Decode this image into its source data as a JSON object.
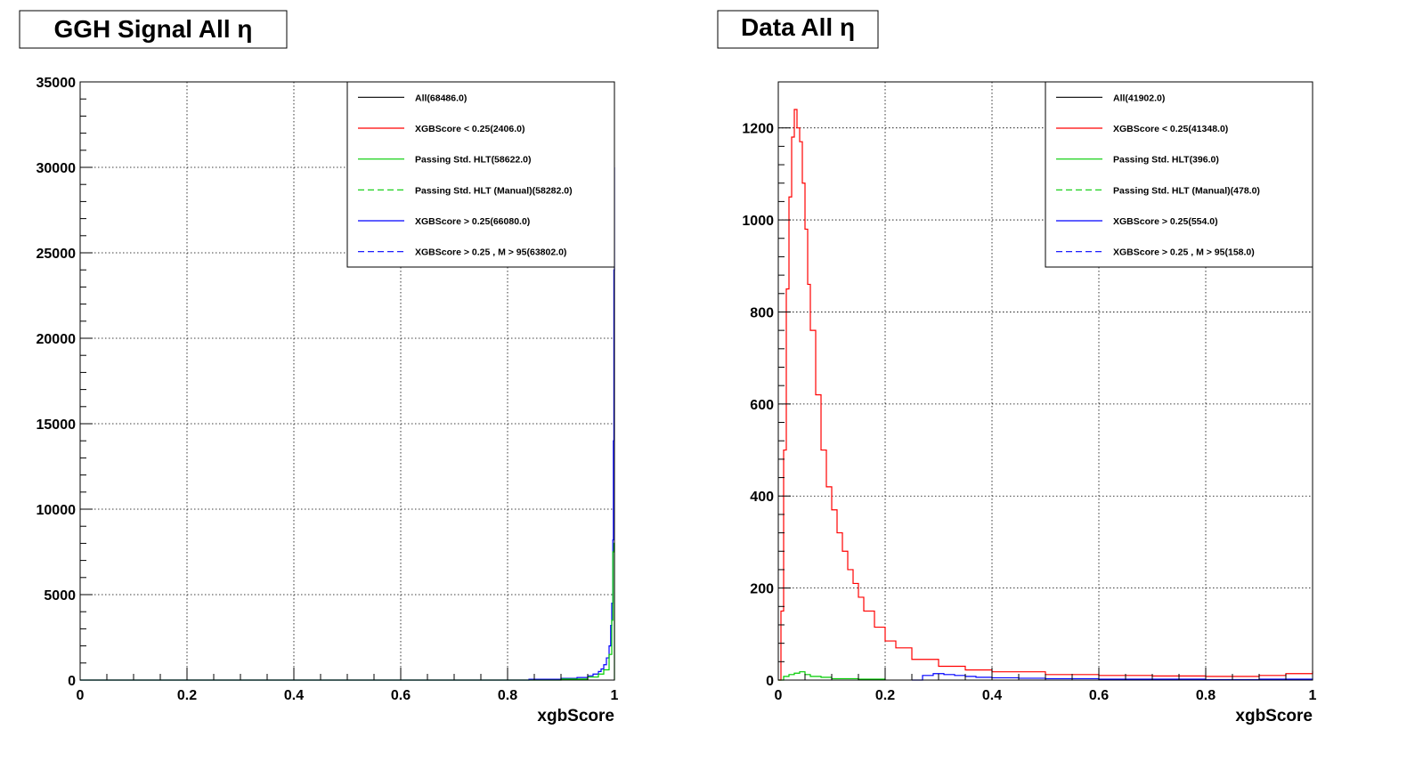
{
  "chart_data": [
    {
      "type": "histogram",
      "title": "GGH Signal All η",
      "xlabel": "xgbScore",
      "ylabel": "",
      "xlim": [
        0,
        1
      ],
      "ylim": [
        0,
        35000
      ],
      "xticks": [
        "0",
        "0.2",
        "0.4",
        "0.6",
        "0.8",
        "1"
      ],
      "yticks": [
        "0",
        "5000",
        "10000",
        "15000",
        "20000",
        "25000",
        "30000",
        "35000"
      ],
      "grid": true,
      "legend_position": "top-right",
      "legend": [
        {
          "label": "All(68486.0)",
          "color": "#000000",
          "style": "solid"
        },
        {
          "label": "XGBScore < 0.25(2406.0)",
          "color": "#ff0000",
          "style": "solid"
        },
        {
          "label": "Passing Std. HLT(58622.0)",
          "color": "#00cc00",
          "style": "solid"
        },
        {
          "label": "Passing Std. HLT (Manual)(58282.0)",
          "color": "#00cc00",
          "style": "dashed"
        },
        {
          "label": "XGBScore > 0.25(66080.0)",
          "color": "#0000ff",
          "style": "solid"
        },
        {
          "label": "XGBScore > 0.25 , M > 95(63802.0)",
          "color": "#0000ff",
          "style": "dashed"
        }
      ],
      "series": [
        {
          "color": "#0000ff",
          "style": "solid",
          "x": [
            0.0,
            0.84,
            0.9,
            0.93,
            0.95,
            0.96,
            0.97,
            0.975,
            0.98,
            0.985,
            0.99,
            0.993,
            0.995,
            0.997,
            0.998,
            0.999,
            1.0
          ],
          "values": [
            0,
            50,
            100,
            150,
            250,
            350,
            500,
            650,
            900,
            1300,
            2000,
            3200,
            4500,
            8200,
            14000,
            24000,
            30000
          ]
        },
        {
          "color": "#00cc00",
          "style": "solid",
          "x": [
            0.0,
            0.9,
            0.95,
            0.97,
            0.98,
            0.99,
            0.995,
            0.997,
            0.999,
            1.0
          ],
          "values": [
            0,
            60,
            180,
            350,
            600,
            1500,
            3500,
            7500,
            8000,
            0
          ]
        }
      ]
    },
    {
      "type": "histogram",
      "title": "Data All η",
      "xlabel": "xgbScore",
      "ylabel": "",
      "xlim": [
        0,
        1
      ],
      "ylim": [
        0,
        1300
      ],
      "xticks": [
        "0",
        "0.2",
        "0.4",
        "0.6",
        "0.8",
        "1"
      ],
      "yticks": [
        "0",
        "200",
        "400",
        "600",
        "800",
        "1000",
        "1200"
      ],
      "grid": true,
      "legend_position": "top-right",
      "legend": [
        {
          "label": "All(41902.0)",
          "color": "#000000",
          "style": "solid"
        },
        {
          "label": "XGBScore < 0.25(41348.0)",
          "color": "#ff0000",
          "style": "solid"
        },
        {
          "label": "Passing Std. HLT(396.0)",
          "color": "#00cc00",
          "style": "solid"
        },
        {
          "label": "Passing Std. HLT (Manual)(478.0)",
          "color": "#00cc00",
          "style": "dashed"
        },
        {
          "label": "XGBScore > 0.25(554.0)",
          "color": "#0000ff",
          "style": "solid"
        },
        {
          "label": "XGBScore > 0.25 , M > 95(158.0)",
          "color": "#0000ff",
          "style": "dashed"
        }
      ],
      "series": [
        {
          "color": "#ff0000",
          "style": "solid",
          "x": [
            0.0,
            0.005,
            0.01,
            0.015,
            0.02,
            0.025,
            0.03,
            0.035,
            0.04,
            0.045,
            0.05,
            0.055,
            0.06,
            0.07,
            0.08,
            0.09,
            0.1,
            0.11,
            0.12,
            0.13,
            0.14,
            0.15,
            0.16,
            0.18,
            0.2,
            0.22,
            0.25,
            0.3,
            0.35,
            0.4,
            0.5,
            0.6,
            0.7,
            0.8,
            0.9,
            0.95,
            1.0
          ],
          "values": [
            0,
            150,
            500,
            850,
            1050,
            1180,
            1240,
            1200,
            1170,
            1080,
            980,
            860,
            760,
            620,
            500,
            420,
            370,
            320,
            280,
            240,
            210,
            180,
            150,
            115,
            85,
            70,
            45,
            30,
            22,
            18,
            12,
            10,
            9,
            8,
            10,
            14,
            20
          ]
        },
        {
          "color": "#00cc00",
          "style": "solid",
          "x": [
            0.0,
            0.01,
            0.02,
            0.03,
            0.04,
            0.05,
            0.06,
            0.08,
            0.1,
            0.15,
            0.2
          ],
          "values": [
            0,
            8,
            12,
            15,
            18,
            12,
            8,
            6,
            3,
            2,
            0
          ]
        },
        {
          "color": "#0000ff",
          "style": "solid",
          "x": [
            0.25,
            0.27,
            0.29,
            0.31,
            0.33,
            0.35,
            0.37,
            0.4,
            0.45,
            0.5,
            0.6,
            0.7,
            0.8,
            0.9,
            1.0
          ],
          "values": [
            0,
            10,
            14,
            12,
            10,
            8,
            6,
            5,
            4,
            3,
            2,
            2,
            1,
            2,
            3
          ]
        }
      ]
    }
  ]
}
